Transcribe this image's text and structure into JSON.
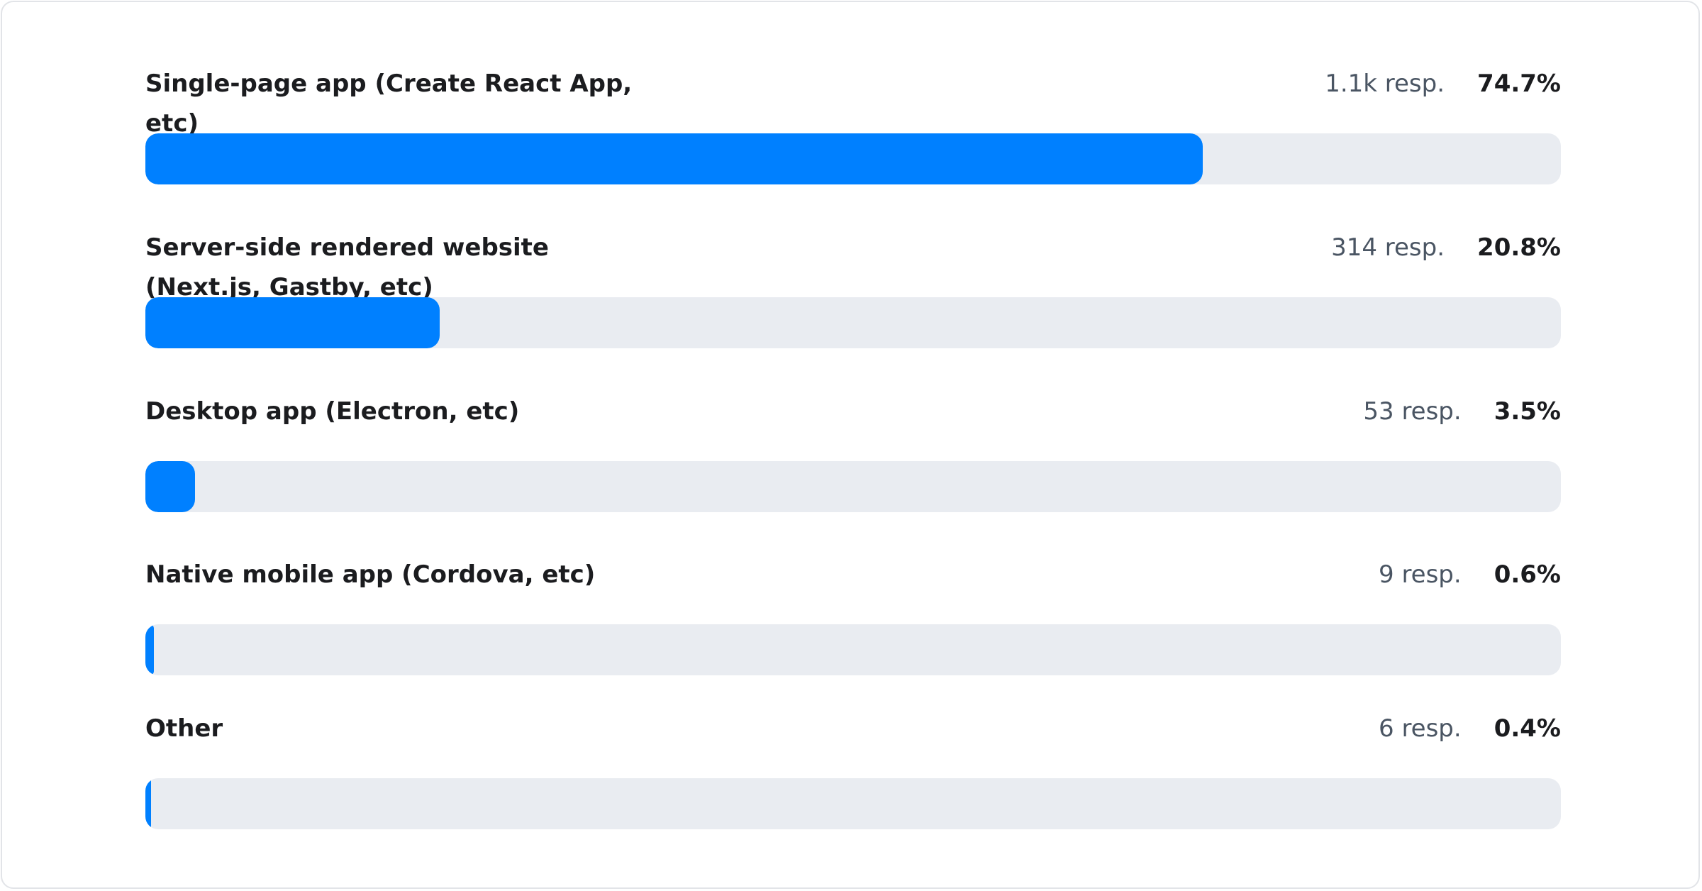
{
  "chart_data": {
    "type": "bar",
    "orientation": "horizontal",
    "categories": [
      "Single-page app (Create React App, etc)",
      "Server-side rendered website (Next.js, Gastby, etc)",
      "Desktop app (Electron, etc)",
      "Native mobile app (Cordova, etc)",
      "Other"
    ],
    "responses": [
      "1.1k resp.",
      "314 resp.",
      "53 resp.",
      "9 resp.",
      "6 resp."
    ],
    "values": [
      74.7,
      20.8,
      3.5,
      0.6,
      0.4
    ],
    "value_labels": [
      "74.7%",
      "20.8%",
      "3.5%",
      "0.6%",
      "0.4%"
    ],
    "xlim": [
      0,
      100
    ],
    "grid": false,
    "colors": {
      "fill": "#0080ff",
      "track": "#e9ecf1"
    }
  }
}
